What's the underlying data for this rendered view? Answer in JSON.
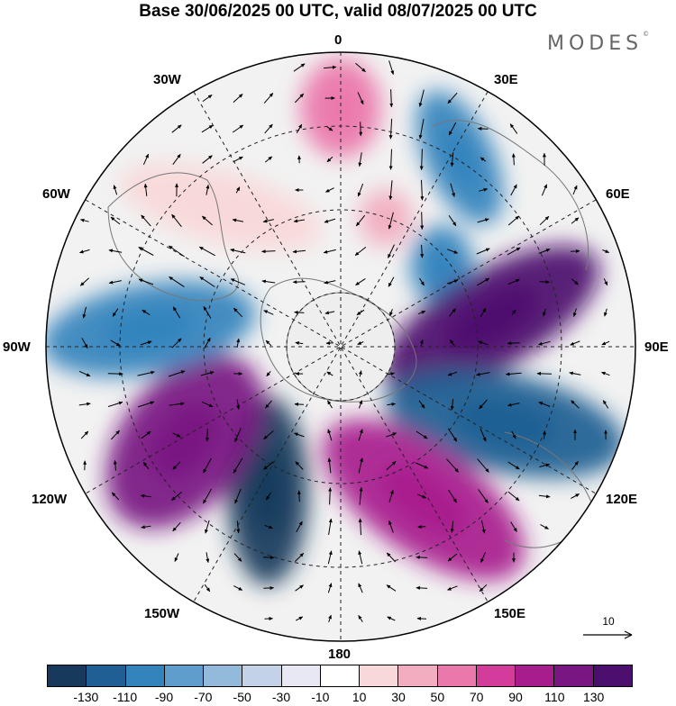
{
  "title": "Base 30/06/2025 00 UTC, valid 08/07/2025 00 UTC",
  "logo": {
    "text": "MODES",
    "mark": "©"
  },
  "longitude_labels": {
    "lon_0": "0",
    "lon_30e": "30E",
    "lon_60e": "60E",
    "lon_90e": "90E",
    "lon_120e": "120E",
    "lon_150e": "150E",
    "lon_180": "180",
    "lon_150w": "150W",
    "lon_120w": "120W",
    "lon_90w": "90W",
    "lon_60w": "60W",
    "lon_30w": "30W"
  },
  "reference_vector": {
    "label": "10"
  },
  "colorbar": {
    "colors": [
      "#173a5c",
      "#1f5f93",
      "#3383bd",
      "#5e9dcc",
      "#93b9db",
      "#c4d2e8",
      "#e8e8f4",
      "#ffffff",
      "#f8d8d8",
      "#f2aec0",
      "#ea78aa",
      "#d43c9c",
      "#a81d8e",
      "#791682",
      "#4d0f6e"
    ],
    "tick_labels": [
      "-130",
      "-110",
      "-90",
      "-70",
      "-50",
      "-30",
      "-10",
      "10",
      "30",
      "50",
      "70",
      "90",
      "110",
      "130"
    ]
  },
  "anomaly_centers": [
    {
      "sign": "positive",
      "level": 70,
      "color": "#ea78aa"
    },
    {
      "sign": "negative",
      "level": -90,
      "color": "#3383bd"
    },
    {
      "sign": "negative",
      "level": -90,
      "color": "#3383bd"
    },
    {
      "sign": "positive",
      "level": 130,
      "color": "#4d0f6e"
    },
    {
      "sign": "negative",
      "level": -110,
      "color": "#1f5f93"
    },
    {
      "sign": "positive",
      "level": 110,
      "color": "#a81d8e"
    },
    {
      "sign": "negative",
      "level": -130,
      "color": "#173a5c"
    },
    {
      "sign": "positive",
      "level": 110,
      "color": "#791682"
    },
    {
      "sign": "negative",
      "level": -90,
      "color": "#3383bd"
    },
    {
      "sign": "positive",
      "level": 30,
      "color": "#f8d8d8"
    },
    {
      "sign": "positive",
      "level": 50,
      "color": "#f2aec0"
    }
  ]
}
